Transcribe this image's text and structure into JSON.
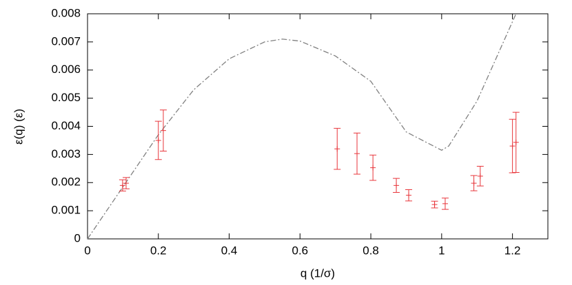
{
  "chart_data": {
    "type": "errorbar",
    "xlabel": "q  (1/σ)",
    "ylabel": "ε(q)  (ε)",
    "xlim": [
      0,
      1.3
    ],
    "ylim": [
      0,
      0.008
    ],
    "xticks": [
      0,
      0.2,
      0.4,
      0.6,
      0.8,
      1,
      1.2
    ],
    "yticks": [
      0,
      0.001,
      0.002,
      0.003,
      0.004,
      0.005,
      0.006,
      0.007,
      0.008
    ],
    "grid": false,
    "series": [
      {
        "type": "line",
        "color": "#808080",
        "dash": true,
        "x": [
          0,
          0.1,
          0.2,
          0.3,
          0.4,
          0.5,
          0.55,
          0.6,
          0.7,
          0.8,
          0.9,
          1.0,
          1.02,
          1.1,
          1.21
        ],
        "values": [
          0,
          0.00185,
          0.0037,
          0.0053,
          0.0064,
          0.007,
          0.0071,
          0.00703,
          0.0065,
          0.0056,
          0.0038,
          0.00315,
          0.0033,
          0.0049,
          0.008
        ]
      },
      {
        "type": "errorbar",
        "color": "#e8353a",
        "x": [
          0.099,
          0.109,
          0.2,
          0.214,
          0.705,
          0.761,
          0.806,
          0.872,
          0.907,
          0.98,
          1.01,
          1.091,
          1.109,
          1.2,
          1.21
        ],
        "values": [
          0.0019,
          0.00198,
          0.0035,
          0.00385,
          0.0032,
          0.00303,
          0.00253,
          0.0019,
          0.00155,
          0.00122,
          0.00125,
          0.00198,
          0.00223,
          0.0033,
          0.00343
        ],
        "errors": [
          0.0002,
          0.0002,
          0.00068,
          0.00073,
          0.00073,
          0.00073,
          0.00045,
          0.00025,
          0.0002,
          0.00012,
          0.0002,
          0.00027,
          0.00035,
          0.00095,
          0.00107
        ]
      }
    ]
  }
}
